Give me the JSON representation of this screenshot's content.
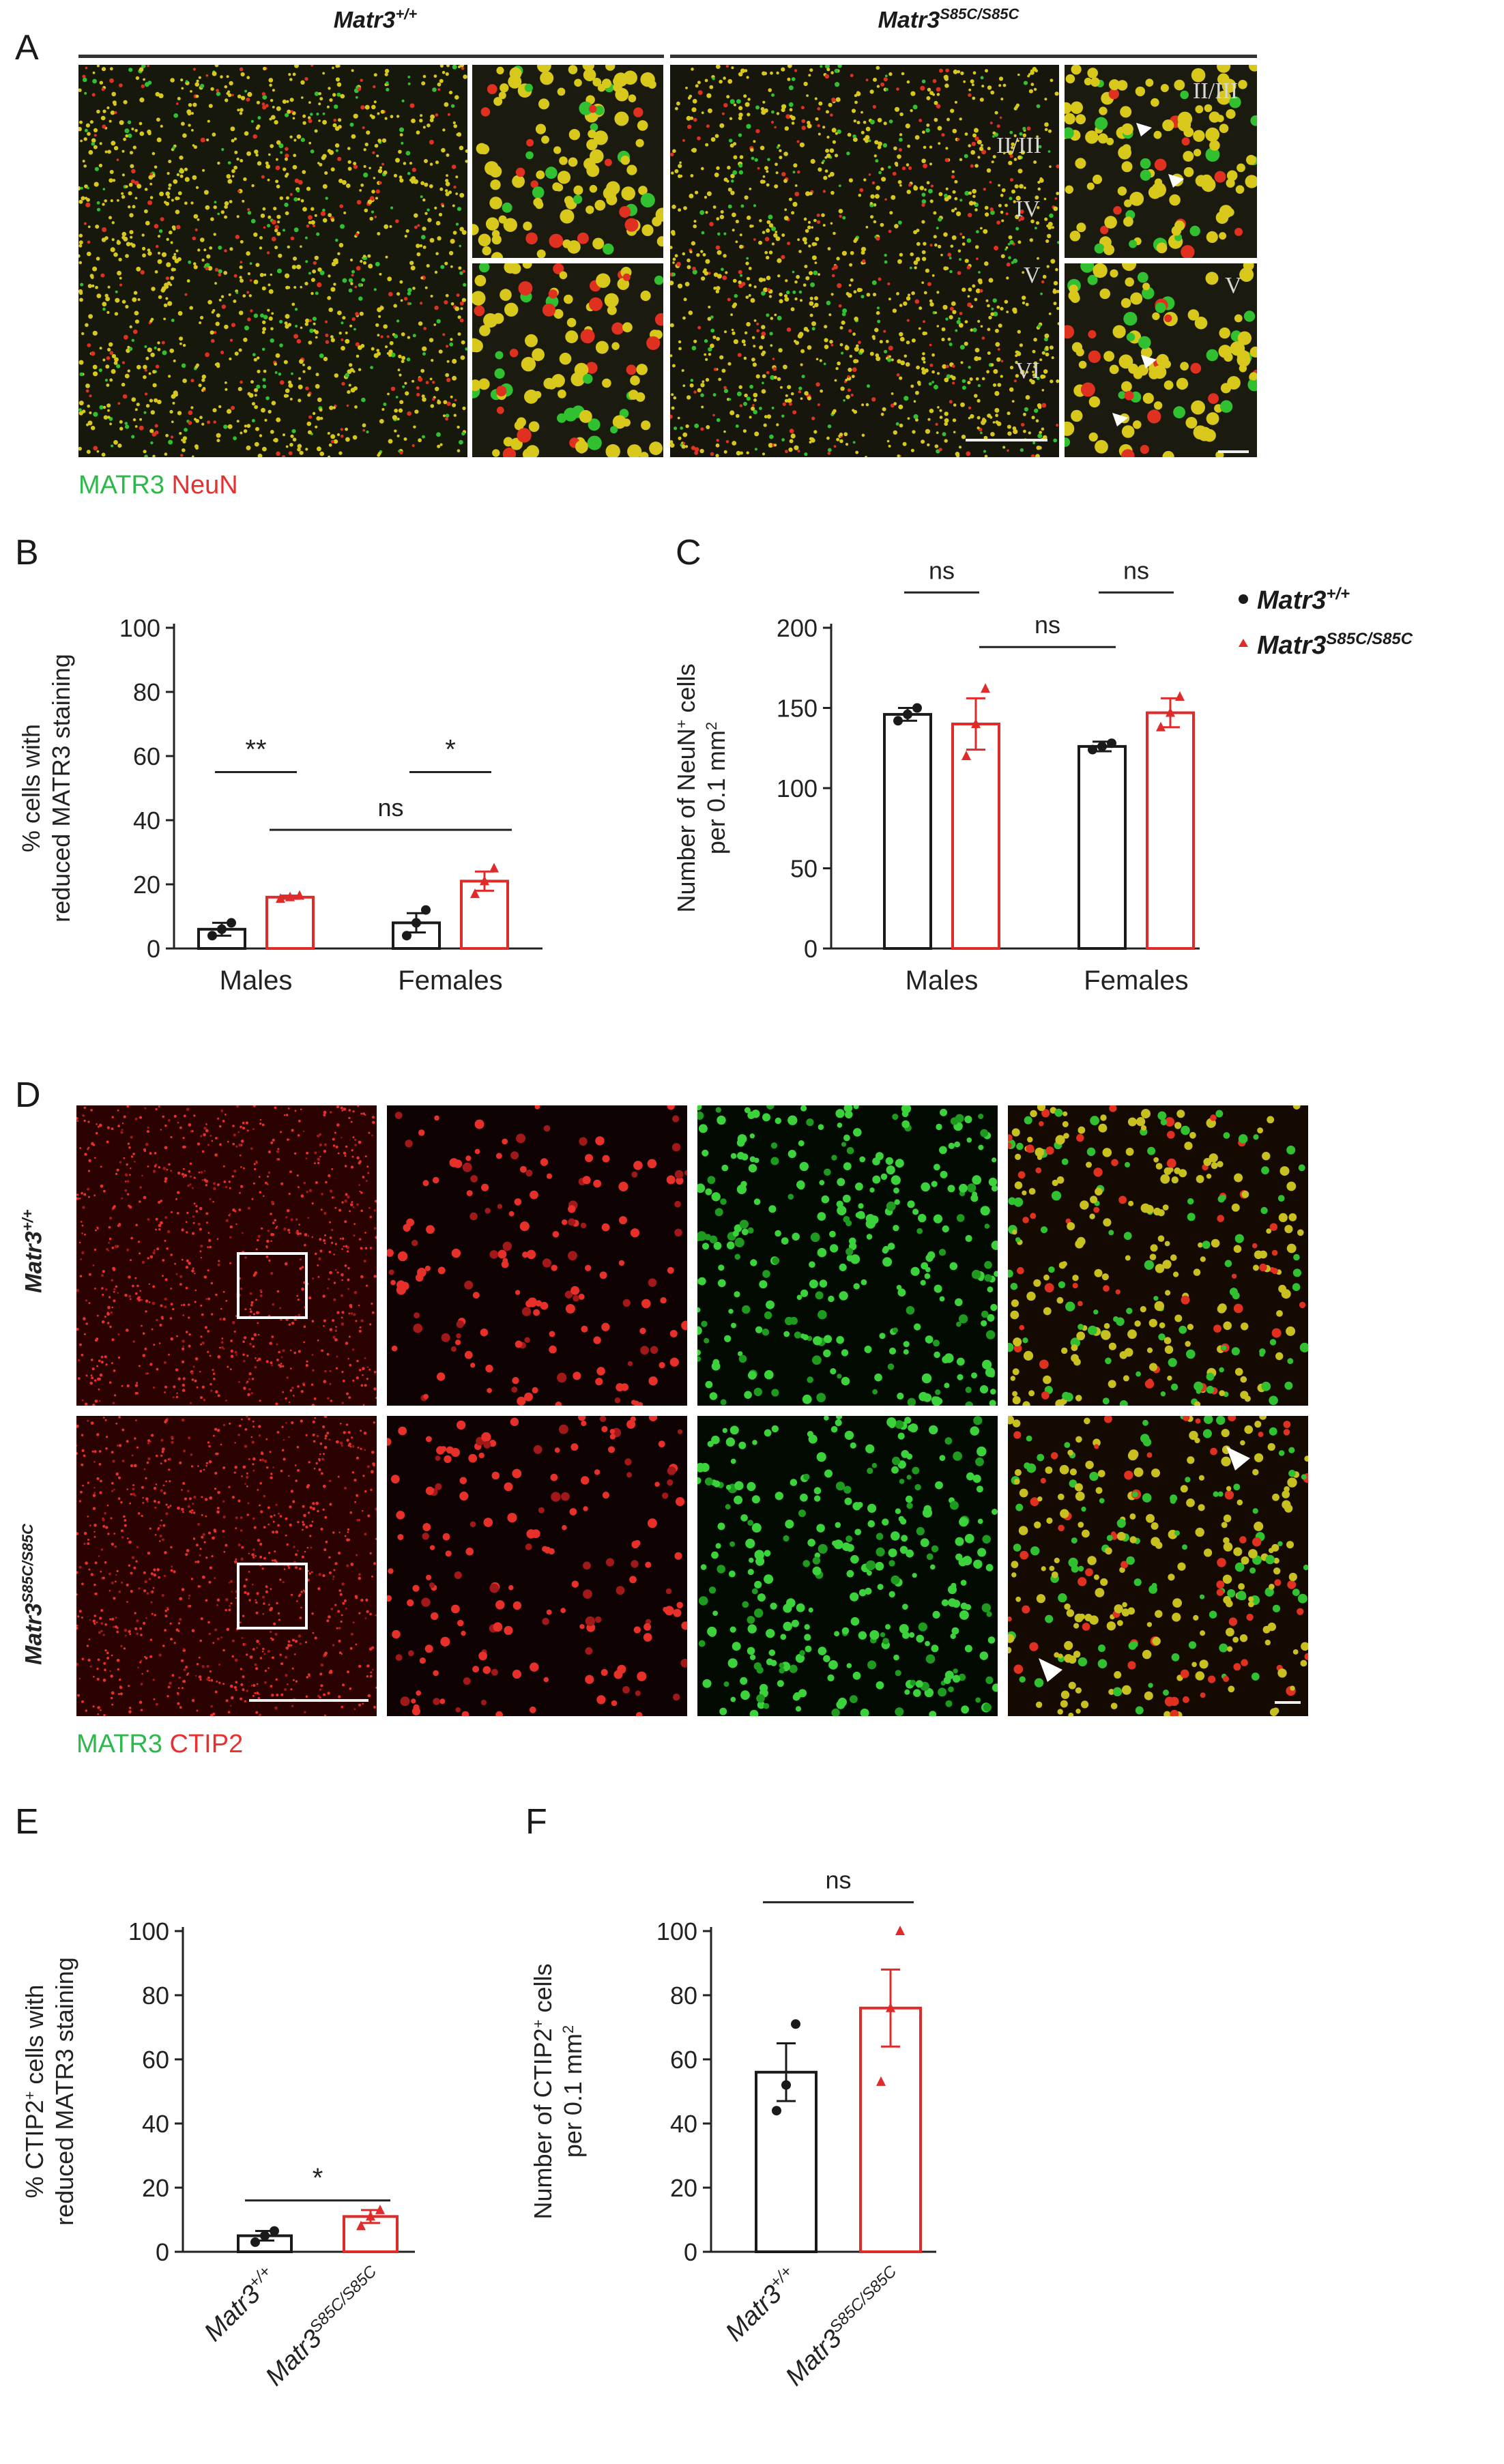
{
  "panels": {
    "A": "A",
    "B": "B",
    "C": "C",
    "D": "D",
    "E": "E",
    "F": "F"
  },
  "panelA": {
    "wt_title_base": "Matr3",
    "wt_title_sup": "+/+",
    "mut_title_base": "Matr3",
    "mut_title_sup": "S85C/S85C",
    "layer_labels": [
      "II/III",
      "IV",
      "V",
      "VI",
      "II/III",
      "V"
    ],
    "legend": {
      "green": "MATR3",
      "red": "NeuN"
    }
  },
  "panelD": {
    "row1_base": "Matr3",
    "row1_sup": "+/+",
    "row2_base": "Matr3",
    "row2_sup": "S85C/S85C",
    "legend": {
      "green": "MATR3",
      "red": "CTIP2"
    }
  },
  "colors": {
    "wt": "#1a1a1a",
    "mut": "#e02b2b",
    "green": "#2db84a",
    "red": "#e83030"
  },
  "legend": {
    "wt_base": "Matr3",
    "wt_sup": "+/+",
    "mut_base": "Matr3",
    "mut_sup": "S85C/S85C"
  },
  "chart_data": [
    {
      "panel": "B",
      "type": "bar",
      "ylabel_line1": "% cells with",
      "ylabel_line2": "reduced MATR3 staining",
      "yticks": [
        0,
        20,
        40,
        60,
        80,
        100
      ],
      "ylim": [
        0,
        100
      ],
      "categories": [
        "Males",
        "Females"
      ],
      "series": [
        {
          "name": "Matr3+/+",
          "values": [
            6,
            8
          ],
          "errors": [
            2,
            3
          ],
          "points": [
            [
              4,
              6,
              8
            ],
            [
              4,
              8,
              12
            ]
          ]
        },
        {
          "name": "Matr3S85C/S85C",
          "values": [
            16,
            21
          ],
          "errors": [
            0.5,
            3
          ],
          "points": [
            [
              15.5,
              16,
              16.5
            ],
            [
              17,
              21,
              25
            ]
          ]
        }
      ],
      "annotations": [
        {
          "text": "**",
          "between": "Males"
        },
        {
          "text": "*",
          "between": "Females"
        },
        {
          "text": "ns",
          "between": "mutant Males vs mutant Females"
        }
      ]
    },
    {
      "panel": "C",
      "type": "bar",
      "ylabel_line1": "Number of NeuN",
      "ylabel_sup": "+",
      "ylabel_line1b": " cells",
      "ylabel_line2": "per 0.1 mm",
      "ylabel_sup2": "2",
      "yticks": [
        0,
        50,
        100,
        150,
        200
      ],
      "ylim": [
        0,
        200
      ],
      "categories": [
        "Males",
        "Females"
      ],
      "series": [
        {
          "name": "Matr3+/+",
          "values": [
            146,
            126
          ],
          "errors": [
            4,
            3
          ],
          "points": [
            [
              142,
              146,
              150
            ],
            [
              124,
              126,
              128
            ]
          ]
        },
        {
          "name": "Matr3S85C/S85C",
          "values": [
            140,
            147
          ],
          "errors": [
            16,
            9
          ],
          "points": [
            [
              120,
              140,
              162
            ],
            [
              138,
              147,
              157
            ]
          ]
        }
      ],
      "annotations": [
        {
          "text": "ns",
          "between": "Males"
        },
        {
          "text": "ns",
          "between": "Females"
        },
        {
          "text": "ns",
          "between": "mutant Males vs wild-type Females"
        }
      ]
    },
    {
      "panel": "E",
      "type": "bar",
      "ylabel_line1": "% CTIP2",
      "ylabel_sup": "+",
      "ylabel_line1b": " cells with",
      "ylabel_line2": "reduced MATR3 staining",
      "yticks": [
        0,
        20,
        40,
        60,
        80,
        100
      ],
      "ylim": [
        0,
        100
      ],
      "categories": [
        "Matr3+/+",
        "Matr3S85C/S85C"
      ],
      "values": [
        5,
        11
      ],
      "errors": [
        1.5,
        2
      ],
      "points": [
        [
          3,
          5,
          6.5
        ],
        [
          8,
          11,
          13
        ]
      ],
      "annotations": [
        {
          "text": "*"
        }
      ]
    },
    {
      "panel": "F",
      "type": "bar",
      "ylabel_line1": "Number of CTIP2",
      "ylabel_sup": "+",
      "ylabel_line1b": " cells",
      "ylabel_line2": "per 0.1 mm",
      "ylabel_sup2": "2",
      "yticks": [
        0,
        20,
        40,
        60,
        80,
        100
      ],
      "ylim": [
        0,
        100
      ],
      "categories": [
        "Matr3+/+",
        "Matr3S85C/S85C"
      ],
      "values": [
        56,
        76
      ],
      "errors": [
        9,
        12
      ],
      "points": [
        [
          44,
          52,
          71
        ],
        [
          53,
          76,
          100
        ]
      ],
      "annotations": [
        {
          "text": "ns"
        }
      ]
    }
  ]
}
